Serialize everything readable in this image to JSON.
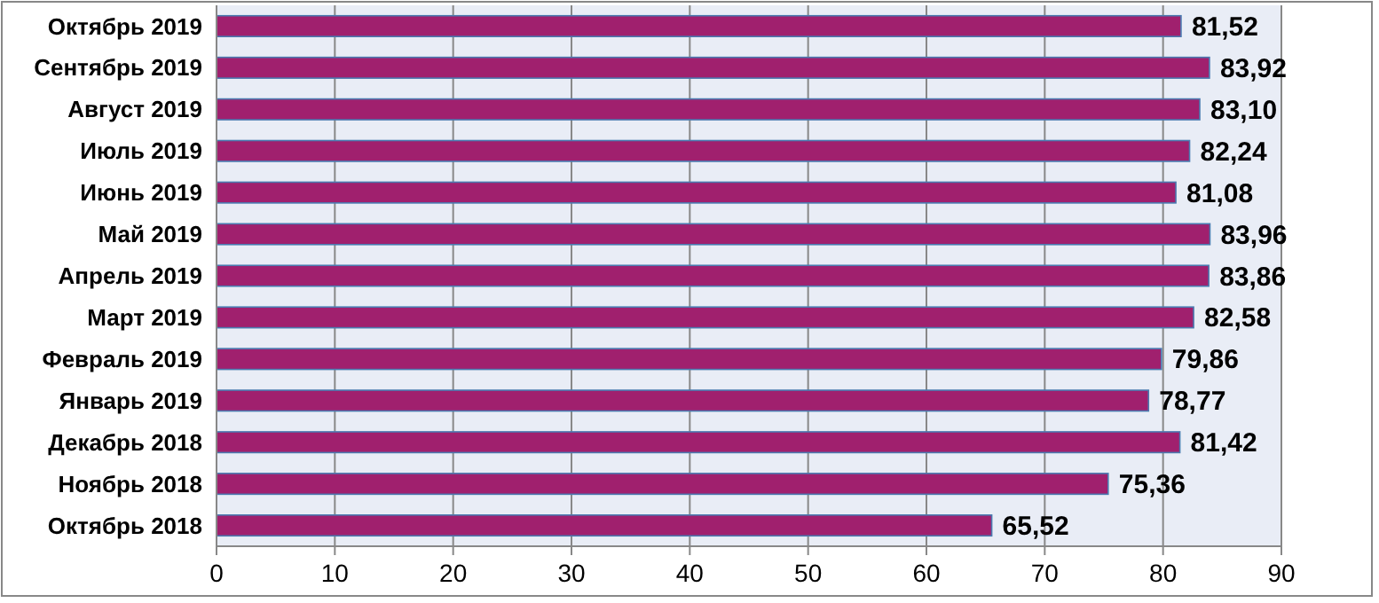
{
  "chart_data": {
    "type": "bar",
    "orientation": "horizontal",
    "categories": [
      "Октябрь 2019",
      "Сентябрь 2019",
      "Август 2019",
      "Июль 2019",
      "Июнь 2019",
      "Май 2019",
      "Апрель 2019",
      "Март 2019",
      "Февраль 2019",
      "Январь 2019",
      "Декабрь 2018",
      "Ноябрь 2018",
      "Октябрь 2018"
    ],
    "values": [
      81.52,
      83.92,
      83.1,
      82.24,
      81.08,
      83.96,
      83.86,
      82.58,
      79.86,
      78.77,
      81.42,
      75.36,
      65.52
    ],
    "value_labels": [
      "81,52",
      "83,92",
      "83,10",
      "82,24",
      "81,08",
      "83,96",
      "83,86",
      "82,58",
      "79,86",
      "78,77",
      "81,42",
      "75,36",
      "65,52"
    ],
    "color": "#a0206e",
    "xlim": [
      0,
      90
    ],
    "xticks": [
      0,
      10,
      20,
      30,
      40,
      50,
      60,
      70,
      80,
      90
    ],
    "grid": "x"
  }
}
